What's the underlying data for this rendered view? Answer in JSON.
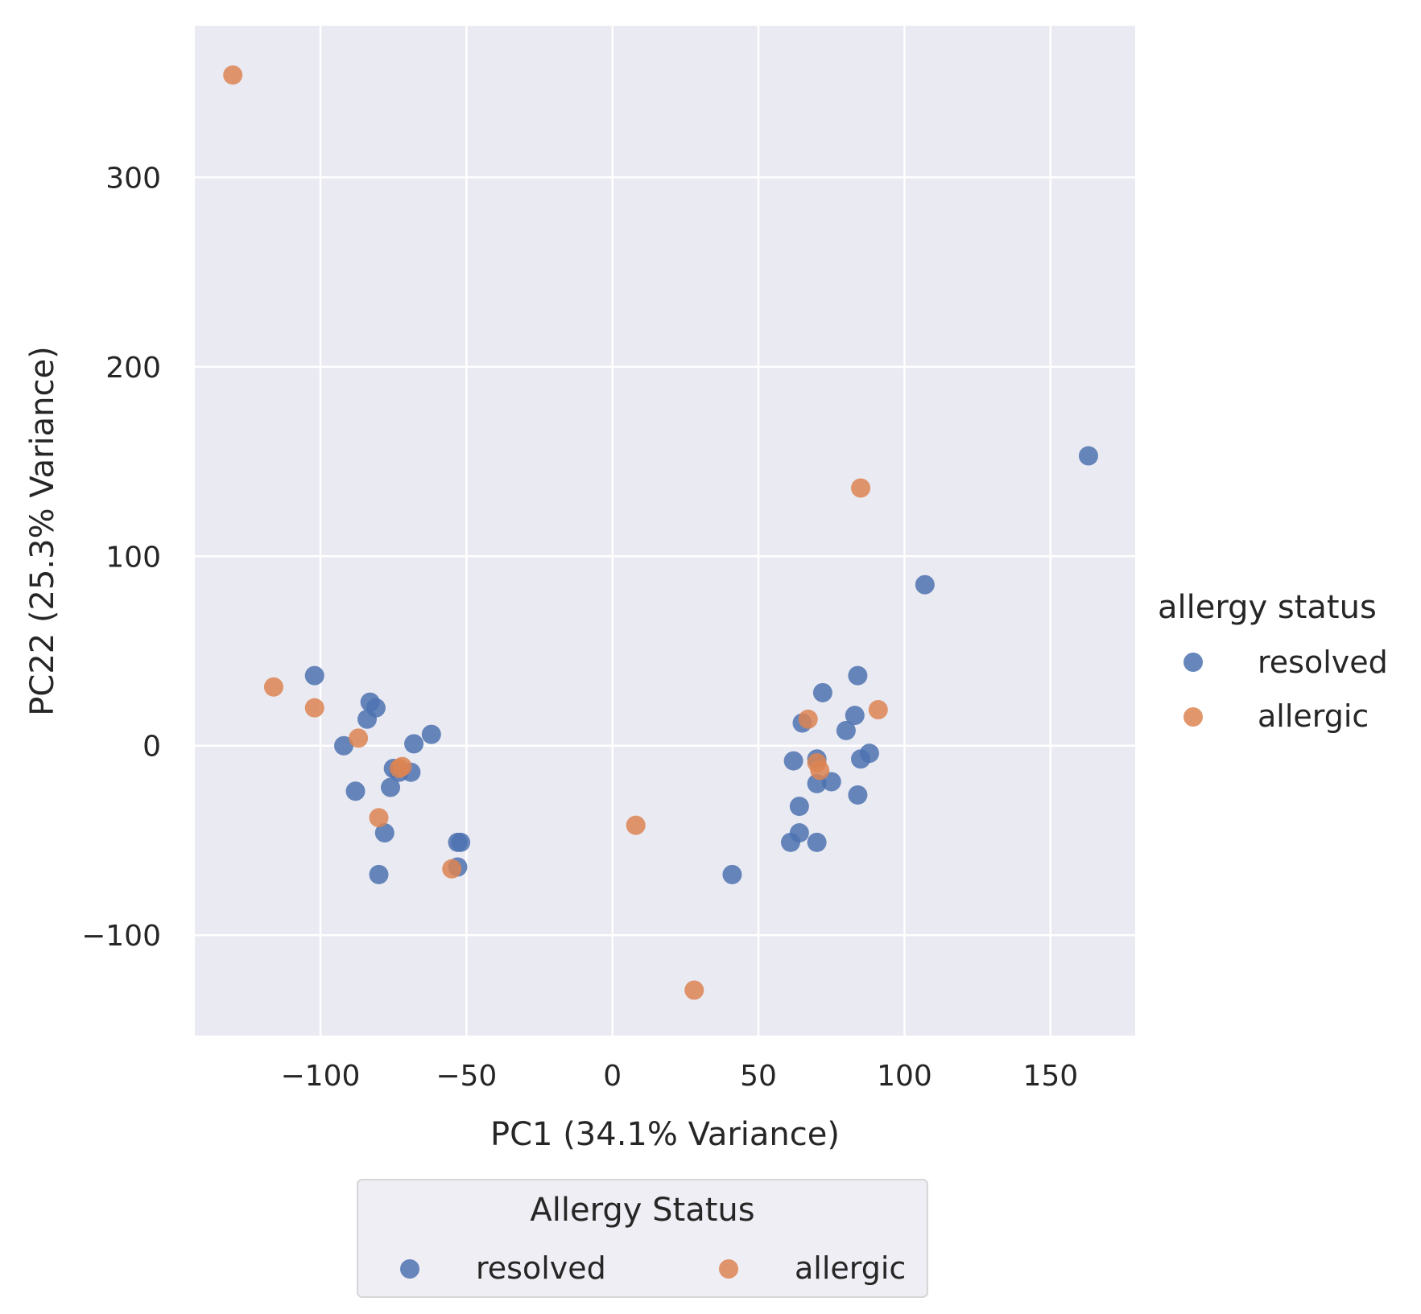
{
  "chart_data": {
    "type": "scatter",
    "xlabel": "PC1 (34.1% Variance)",
    "ylabel": "PC22 (25.3% Variance)",
    "xlim": [
      -143,
      179
    ],
    "ylim": [
      -153,
      380
    ],
    "xticks": [
      -100,
      -50,
      0,
      50,
      100,
      150
    ],
    "yticks": [
      -100,
      0,
      100,
      200,
      300
    ],
    "grid": true,
    "series": [
      {
        "name": "resolved",
        "color": "#4c72b0",
        "points": [
          [
            -102,
            37
          ],
          [
            -83,
            23
          ],
          [
            -81,
            20
          ],
          [
            -84,
            14
          ],
          [
            -92,
            0
          ],
          [
            -88,
            -24
          ],
          [
            -75,
            -12
          ],
          [
            -76,
            -22
          ],
          [
            -73,
            -14
          ],
          [
            -69,
            -14
          ],
          [
            -68,
            1
          ],
          [
            -62,
            6
          ],
          [
            -78,
            -46
          ],
          [
            -80,
            -68
          ],
          [
            -53,
            -51
          ],
          [
            -53,
            -64
          ],
          [
            -52,
            -51
          ],
          [
            41,
            -68
          ],
          [
            61,
            -51
          ],
          [
            64,
            -46
          ],
          [
            64,
            -32
          ],
          [
            62,
            -8
          ],
          [
            65,
            12
          ],
          [
            70,
            -7
          ],
          [
            70,
            -20
          ],
          [
            72,
            28
          ],
          [
            75,
            -19
          ],
          [
            70,
            -51
          ],
          [
            80,
            8
          ],
          [
            83,
            16
          ],
          [
            84,
            37
          ],
          [
            84,
            -26
          ],
          [
            85,
            -7
          ],
          [
            88,
            -4
          ],
          [
            107,
            85
          ],
          [
            163,
            153
          ]
        ]
      },
      {
        "name": "allergic",
        "color": "#dd8452",
        "points": [
          [
            -130,
            354
          ],
          [
            -116,
            31
          ],
          [
            -102,
            20
          ],
          [
            -87,
            4
          ],
          [
            -73,
            -12
          ],
          [
            -72,
            -11
          ],
          [
            -80,
            -38
          ],
          [
            -55,
            -65
          ],
          [
            8,
            -42
          ],
          [
            28,
            -129
          ],
          [
            67,
            14
          ],
          [
            70,
            -9
          ],
          [
            71,
            -13
          ],
          [
            85,
            136
          ],
          [
            91,
            19
          ]
        ]
      }
    ],
    "legend_right": {
      "title": "allergy status",
      "entries": [
        "resolved",
        "allergic"
      ]
    },
    "legend_bottom": {
      "title": "Allergy Status",
      "entries": [
        "resolved",
        "allergic"
      ]
    }
  }
}
